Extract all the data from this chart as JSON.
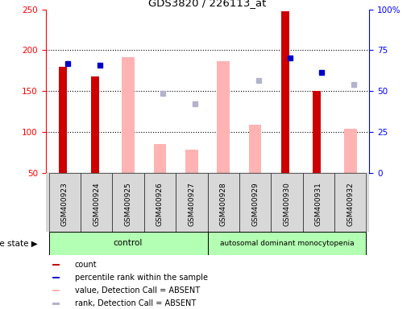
{
  "title": "GDS3820 / 226113_at",
  "samples": [
    "GSM400923",
    "GSM400924",
    "GSM400925",
    "GSM400926",
    "GSM400927",
    "GSM400928",
    "GSM400929",
    "GSM400930",
    "GSM400931",
    "GSM400932"
  ],
  "count_values": [
    180,
    168,
    null,
    null,
    null,
    null,
    null,
    248,
    150,
    null
  ],
  "percentile_rank_values": [
    184,
    182,
    null,
    null,
    null,
    null,
    null,
    191,
    173,
    null
  ],
  "absent_value_bars": [
    null,
    null,
    192,
    85,
    79,
    187,
    109,
    null,
    null,
    104
  ],
  "absent_rank_dots": [
    null,
    null,
    null,
    147,
    135,
    null,
    163,
    null,
    null,
    158
  ],
  "ylim_left": [
    50,
    250
  ],
  "ylim_right": [
    0,
    100
  ],
  "yticks_left": [
    50,
    100,
    150,
    200,
    250
  ],
  "yticks_right": [
    0,
    25,
    50,
    75,
    100
  ],
  "yticklabels_right": [
    "0",
    "25",
    "50",
    "75",
    "100%"
  ],
  "color_count": "#cc0000",
  "color_percentile": "#0000cc",
  "color_absent_value": "#ffb3b3",
  "color_absent_rank": "#b3b3cc",
  "control_color": "#b3ffb3",
  "autosomal_color": "#b3ffb3",
  "legend_items": [
    {
      "label": "count",
      "color": "#cc0000"
    },
    {
      "label": "percentile rank within the sample",
      "color": "#0000cc"
    },
    {
      "label": "value, Detection Call = ABSENT",
      "color": "#ffb3b3"
    },
    {
      "label": "rank, Detection Call = ABSENT",
      "color": "#b3b3cc"
    }
  ],
  "disease_state_label": "disease state",
  "control_label": "control",
  "autosomal_label": "autosomal dominant monocytopenia",
  "n_control": 5,
  "n_total": 10,
  "grid_lines": [
    100,
    150,
    200
  ]
}
